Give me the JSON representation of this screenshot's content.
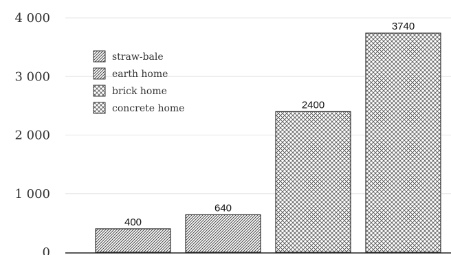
{
  "chart_data": {
    "type": "bar",
    "categories": [
      "straw-bale",
      "earth home",
      "brick home",
      "concrete home"
    ],
    "values": [
      400,
      640,
      2400,
      3740
    ],
    "data_labels": [
      "400",
      "640",
      "2400",
      "3740"
    ],
    "ylim": [
      0,
      4000
    ],
    "yticks": [
      0,
      1000,
      2000,
      3000,
      4000
    ],
    "ytick_labels": [
      "0",
      "1 000",
      "2 000",
      "3 000",
      "4 000"
    ],
    "grid": true,
    "legend": {
      "placement": "top-left",
      "entries": [
        "straw-bale",
        "earth home",
        "brick home",
        "concrete home"
      ]
    },
    "patterns": [
      "diagonal-hatch",
      "diagonal-hatch",
      "cross-hatch",
      "cross-hatch"
    ],
    "colors": {
      "bar_fill": "#ffffff",
      "bar_stroke": "#333333",
      "grid": "#e6e6e6",
      "axis": "#222222"
    }
  }
}
